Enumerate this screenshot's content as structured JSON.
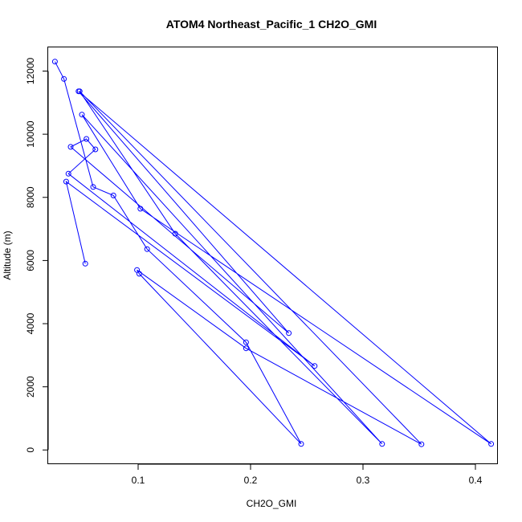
{
  "chart_data": {
    "type": "line",
    "title": "ATOM4 Northeast_Pacific_1 CH2O_GMI",
    "xlabel": "CH2O_GMI",
    "ylabel": "Altitude (m)",
    "xlim": [
      0.02,
      0.42
    ],
    "ylim": [
      -450,
      12750
    ],
    "xticks": [
      0.1,
      0.2,
      0.3,
      0.4
    ],
    "xtick_labels": [
      "0.1",
      "0.2",
      "0.3",
      "0.4"
    ],
    "yticks": [
      0,
      2000,
      4000,
      6000,
      8000,
      10000,
      12000
    ],
    "ytick_labels": [
      "0",
      "2000",
      "4000",
      "6000",
      "8000",
      "10000",
      "12000"
    ],
    "grid": false,
    "color": "#0000ff",
    "series": [
      {
        "x": [
          0.026,
          0.034,
          0.06,
          0.078,
          0.108,
          0.196,
          0.245,
          0.101,
          0.099,
          0.196,
          0.352,
          0.048,
          0.133,
          0.317,
          0.05,
          0.102,
          0.414,
          0.047,
          0.234,
          0.04,
          0.054,
          0.062,
          0.038,
          0.257,
          0.036,
          0.053
        ],
        "y": [
          12300,
          11750,
          8330,
          8060,
          6360,
          3410,
          190,
          5580,
          5700,
          3220,
          180,
          11360,
          6850,
          190,
          10620,
          7640,
          190,
          11360,
          3700,
          9600,
          9850,
          9520,
          8750,
          2660,
          8500,
          5900
        ]
      }
    ]
  }
}
